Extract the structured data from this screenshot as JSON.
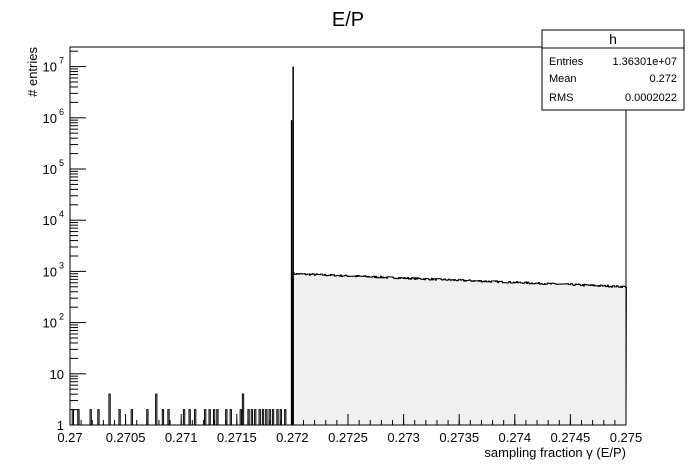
{
  "chart_data": {
    "type": "bar",
    "histogram": true,
    "title": "E/P",
    "xlabel": "sampling fraction γ (E/P)",
    "ylabel": "# entries",
    "xlim": [
      0.27,
      0.275
    ],
    "ylim": [
      1,
      20000000
    ],
    "yscale": "log",
    "x_ticks": [
      {
        "value": 0.27,
        "label": "0.27"
      },
      {
        "value": 0.2705,
        "label": "0.2705"
      },
      {
        "value": 0.271,
        "label": "0.271"
      },
      {
        "value": 0.2715,
        "label": "0.2715"
      },
      {
        "value": 0.272,
        "label": "0.272"
      },
      {
        "value": 0.2725,
        "label": "0.2725"
      },
      {
        "value": 0.273,
        "label": "0.273"
      },
      {
        "value": 0.2735,
        "label": "0.2735"
      },
      {
        "value": 0.274,
        "label": "0.274"
      },
      {
        "value": 0.2745,
        "label": "0.2745"
      },
      {
        "value": 0.275,
        "label": "0.275"
      }
    ],
    "y_ticks": [
      {
        "value": 1,
        "base": "1",
        "exp": ""
      },
      {
        "value": 10,
        "base": "10",
        "exp": ""
      },
      {
        "value": 100,
        "base": "10",
        "exp": "2"
      },
      {
        "value": 1000,
        "base": "10",
        "exp": "3"
      },
      {
        "value": 10000,
        "base": "10",
        "exp": "4"
      },
      {
        "value": 100000,
        "base": "10",
        "exp": "5"
      },
      {
        "value": 1000000,
        "base": "10",
        "exp": "6"
      },
      {
        "value": 10000000,
        "base": "10",
        "exp": "7"
      }
    ],
    "grid": false,
    "fill_color": "#f0f0f0",
    "line_color": "#000000",
    "low_tail_bins": [
      {
        "x": 0.27002,
        "y": 2
      },
      {
        "x": 0.27007,
        "y": 2
      },
      {
        "x": 0.27012,
        "y": 1
      },
      {
        "x": 0.27018,
        "y": 2
      },
      {
        "x": 0.27025,
        "y": 2
      },
      {
        "x": 0.27032,
        "y": 1
      },
      {
        "x": 0.27035,
        "y": 4
      },
      {
        "x": 0.27044,
        "y": 2
      },
      {
        "x": 0.27055,
        "y": 2
      },
      {
        "x": 0.27058,
        "y": 1
      },
      {
        "x": 0.27069,
        "y": 2
      },
      {
        "x": 0.27077,
        "y": 4
      },
      {
        "x": 0.27083,
        "y": 2
      },
      {
        "x": 0.27088,
        "y": 2
      },
      {
        "x": 0.27093,
        "y": 1
      },
      {
        "x": 0.27102,
        "y": 2
      },
      {
        "x": 0.27107,
        "y": 2
      },
      {
        "x": 0.27112,
        "y": 2
      },
      {
        "x": 0.27121,
        "y": 2
      },
      {
        "x": 0.27125,
        "y": 2
      },
      {
        "x": 0.27129,
        "y": 2
      },
      {
        "x": 0.27132,
        "y": 2
      },
      {
        "x": 0.27136,
        "y": 1
      },
      {
        "x": 0.2714,
        "y": 2
      },
      {
        "x": 0.27144,
        "y": 2
      },
      {
        "x": 0.27148,
        "y": 1
      },
      {
        "x": 0.27153,
        "y": 2
      },
      {
        "x": 0.27155,
        "y": 4
      },
      {
        "x": 0.2716,
        "y": 2
      },
      {
        "x": 0.27163,
        "y": 2
      },
      {
        "x": 0.27166,
        "y": 2
      },
      {
        "x": 0.2717,
        "y": 2
      },
      {
        "x": 0.27173,
        "y": 2
      },
      {
        "x": 0.27176,
        "y": 2
      },
      {
        "x": 0.27179,
        "y": 2
      },
      {
        "x": 0.27182,
        "y": 2
      },
      {
        "x": 0.27186,
        "y": 2
      },
      {
        "x": 0.27189,
        "y": 2
      },
      {
        "x": 0.27193,
        "y": 2
      }
    ],
    "peak_bins": [
      {
        "x": 0.271995,
        "y": 900000
      },
      {
        "x": 0.272,
        "y": 10000000
      }
    ],
    "plateau": {
      "x": [
        0.272,
        0.275
      ],
      "y_start": 900,
      "y_end": 500
    }
  },
  "stats_box": {
    "name": "h",
    "rows": [
      {
        "label": "Entries",
        "value": "1.36301e+07"
      },
      {
        "label": "Mean",
        "value": "0.272"
      },
      {
        "label": "RMS",
        "value": "0.0002022"
      }
    ]
  }
}
